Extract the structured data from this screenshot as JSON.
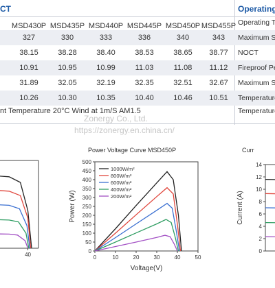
{
  "table": {
    "left_header": "CT",
    "right_header": "Operating",
    "models": [
      "MSD430P",
      "MSD435P",
      "MSD440P",
      "MSD445P",
      "MSD450P",
      "MSD455P"
    ],
    "rows": [
      [
        "327",
        "330",
        "333",
        "336",
        "340",
        "343"
      ],
      [
        "38.15",
        "38.28",
        "38.40",
        "38.53",
        "38.65",
        "38.77"
      ],
      [
        "10.91",
        "10.95",
        "10.99",
        "11.03",
        "11.08",
        "11.12"
      ],
      [
        "31.89",
        "32.05",
        "32.19",
        "32.35",
        "32.51",
        "32.67"
      ],
      [
        "10.26",
        "10.30",
        "10.35",
        "10.40",
        "10.46",
        "10.51"
      ]
    ],
    "right_rows": [
      "Operating Te",
      "Maximum Sy",
      "NOCT",
      "Fireproof Pe",
      "Maximum Se",
      "Temperature"
    ],
    "footnote": "nt Temperature 20°C  Wind at 1m/S  AM1.5",
    "foot_right": "Temperature"
  },
  "watermark": {
    "line1": "Zonergy Co., Ltd.",
    "line2": "https://zonergy.en.china.cn/"
  },
  "power_chart": {
    "title": "Power Voltage Curve  MSD450P",
    "ylabel": "Power (W)",
    "xlabel": "Voltage(V)"
  },
  "right_chart": {
    "title": "Curr",
    "ylabel": "Current (A)"
  },
  "chart_data": [
    {
      "type": "line",
      "title": "Power Voltage Curve  MSD450P",
      "xlabel": "Voltage(V)",
      "ylabel": "Power (W)",
      "xlim": [
        0,
        50
      ],
      "ylim": [
        0,
        500
      ],
      "xticks": [
        0,
        10,
        20,
        30,
        40,
        50
      ],
      "yticks": [
        0,
        50,
        100,
        150,
        200,
        250,
        300,
        350,
        400,
        450,
        500
      ],
      "legend_position": "top-left",
      "grid": false,
      "series": [
        {
          "name": "1000W/m²",
          "color": "#222222",
          "x": [
            0,
            10,
            20,
            30,
            35,
            38,
            40.5,
            42
          ],
          "y": [
            0,
            125,
            255,
            382,
            445,
            400,
            200,
            0
          ]
        },
        {
          "name": "800W/m²",
          "color": "#e0443a",
          "x": [
            0,
            10,
            20,
            30,
            35,
            38,
            40,
            41.5
          ],
          "y": [
            0,
            100,
            203,
            305,
            355,
            320,
            150,
            0
          ]
        },
        {
          "name": "600W/m²",
          "color": "#3a6fd1",
          "x": [
            0,
            10,
            20,
            30,
            35,
            37.5,
            39.5,
            41
          ],
          "y": [
            0,
            75,
            152,
            228,
            267,
            240,
            110,
            0
          ]
        },
        {
          "name": "400W/m²",
          "color": "#2f9d62",
          "x": [
            0,
            10,
            20,
            30,
            34.5,
            37,
            39,
            40.5
          ],
          "y": [
            0,
            50,
            101,
            152,
            177,
            160,
            75,
            0
          ]
        },
        {
          "name": "200W/m²",
          "color": "#a24fc4",
          "x": [
            0,
            10,
            20,
            30,
            34,
            36.5,
            38.5,
            40
          ],
          "y": [
            0,
            25,
            50,
            76,
            88,
            80,
            38,
            0
          ]
        }
      ]
    },
    {
      "type": "line",
      "ylabel": "Current (A)",
      "xlim": [
        0,
        45
      ],
      "ylim": [
        0,
        14
      ],
      "yticks": [
        0,
        2,
        4,
        6,
        8,
        10,
        12,
        14
      ],
      "grid": false,
      "series": [
        {
          "color": "#222222",
          "x": [
            0,
            30,
            36,
            40,
            42
          ],
          "y": [
            11.6,
            11.4,
            10.5,
            6,
            0
          ]
        },
        {
          "color": "#e0443a",
          "x": [
            0,
            30,
            36,
            40,
            41.5
          ],
          "y": [
            9.3,
            9.1,
            8.4,
            4.8,
            0
          ]
        },
        {
          "color": "#3a6fd1",
          "x": [
            0,
            30,
            35.5,
            39.5,
            41
          ],
          "y": [
            7.0,
            6.85,
            6.3,
            3.6,
            0
          ]
        },
        {
          "color": "#2f9d62",
          "x": [
            0,
            30,
            35,
            39,
            40.5
          ],
          "y": [
            4.6,
            4.5,
            4.2,
            2.4,
            0
          ]
        },
        {
          "color": "#a24fc4",
          "x": [
            0,
            30,
            34.5,
            38.5,
            40
          ],
          "y": [
            2.3,
            2.25,
            2.1,
            1.2,
            0
          ]
        }
      ]
    },
    {
      "type": "line",
      "xlim": [
        0,
        50
      ],
      "xticks": [
        40
      ],
      "grid": false,
      "series": [
        {
          "color": "#222222",
          "x": [
            20,
            30,
            36,
            40,
            42
          ],
          "y": [
            11.6,
            11.4,
            10.5,
            6,
            0
          ]
        },
        {
          "color": "#e0443a",
          "x": [
            20,
            30,
            36,
            40,
            41.5
          ],
          "y": [
            9.3,
            9.1,
            8.4,
            4.8,
            0
          ]
        },
        {
          "color": "#3a6fd1",
          "x": [
            20,
            30,
            35.5,
            39.5,
            41
          ],
          "y": [
            7.0,
            6.85,
            6.3,
            3.6,
            0
          ]
        },
        {
          "color": "#2f9d62",
          "x": [
            20,
            30,
            35,
            39,
            40.5
          ],
          "y": [
            4.6,
            4.5,
            4.2,
            2.4,
            0
          ]
        },
        {
          "color": "#a24fc4",
          "x": [
            20,
            30,
            34.5,
            38.5,
            40
          ],
          "y": [
            2.3,
            2.25,
            2.1,
            1.2,
            0
          ]
        }
      ]
    }
  ]
}
